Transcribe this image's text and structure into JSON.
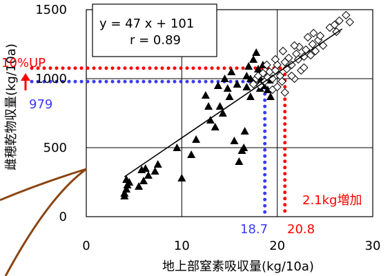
{
  "chart_data": {
    "type": "scatter",
    "xlabel": "地上部窒素吸収量(kg/10a)",
    "ylabel": "雌穂乾物収量(kg/10a)",
    "xlim": [
      0,
      30
    ],
    "ylim": [
      0,
      1500
    ],
    "x_ticks": [
      "0",
      "10",
      "20",
      "30"
    ],
    "y_ticks": [
      "0",
      "500",
      "1000",
      "1500"
    ],
    "grid": true,
    "series": [
      {
        "marker": "filled-triangle",
        "color": "#000000",
        "points": [
          [
            4.0,
            170
          ],
          [
            4.0,
            150
          ],
          [
            4.2,
            200
          ],
          [
            4.3,
            230
          ],
          [
            4.5,
            250
          ],
          [
            4.2,
            270
          ],
          [
            5.5,
            220
          ],
          [
            6.0,
            260
          ],
          [
            6.5,
            300
          ],
          [
            5.8,
            340
          ],
          [
            6.2,
            350
          ],
          [
            7.2,
            330
          ],
          [
            7.5,
            380
          ],
          [
            9.5,
            500
          ],
          [
            10.0,
            280
          ],
          [
            11.0,
            450
          ],
          [
            11.5,
            560
          ],
          [
            12.5,
            880
          ],
          [
            12.8,
            800
          ],
          [
            13.0,
            700
          ],
          [
            13.5,
            650
          ],
          [
            13.8,
            950
          ],
          [
            14.0,
            800
          ],
          [
            14.3,
            750
          ],
          [
            14.5,
            1000
          ],
          [
            14.8,
            930
          ],
          [
            15.0,
            870
          ],
          [
            15.2,
            1050
          ],
          [
            15.5,
            550
          ],
          [
            15.8,
            960
          ],
          [
            16.0,
            400
          ],
          [
            16.3,
            480
          ],
          [
            16.5,
            500
          ],
          [
            16.6,
            620
          ],
          [
            16.8,
            1020
          ],
          [
            16.8,
            940
          ],
          [
            17.0,
            1090
          ],
          [
            17.2,
            1000
          ],
          [
            17.5,
            1140
          ],
          [
            17.2,
            870
          ],
          [
            17.8,
            1190
          ],
          [
            18.0,
            1070
          ],
          [
            18.2,
            930
          ],
          [
            18.3,
            990
          ],
          [
            18.5,
            1100
          ],
          [
            18.8,
            1000
          ],
          [
            19.0,
            920
          ],
          [
            19.2,
            990
          ],
          [
            19.3,
            870
          ],
          [
            18.6,
            950
          ]
        ]
      },
      {
        "marker": "open-diamond",
        "color": "#000000",
        "points": [
          [
            17.5,
            960
          ],
          [
            17.8,
            1000
          ],
          [
            18.0,
            1020
          ],
          [
            18.2,
            950
          ],
          [
            18.5,
            1040
          ],
          [
            18.7,
            980
          ],
          [
            19.0,
            1010
          ],
          [
            19.2,
            1050
          ],
          [
            19.5,
            1000
          ],
          [
            19.8,
            1060
          ],
          [
            20.0,
            1100
          ],
          [
            20.3,
            1020
          ],
          [
            20.5,
            980
          ],
          [
            20.8,
            1120
          ],
          [
            21.0,
            1070
          ],
          [
            21.2,
            1150
          ],
          [
            21.5,
            1100
          ],
          [
            21.8,
            1000
          ],
          [
            22.0,
            1180
          ],
          [
            22.2,
            1140
          ],
          [
            22.5,
            1060
          ],
          [
            22.8,
            1160
          ],
          [
            23.0,
            1210
          ],
          [
            23.2,
            1300
          ],
          [
            23.5,
            1170
          ],
          [
            23.7,
            1250
          ],
          [
            24.0,
            1200
          ],
          [
            24.3,
            1280
          ],
          [
            24.5,
            1310
          ],
          [
            25.5,
            1370
          ],
          [
            26.0,
            1390
          ],
          [
            26.2,
            1340
          ],
          [
            26.5,
            1420
          ],
          [
            27.2,
            1460
          ],
          [
            27.6,
            1410
          ],
          [
            19.5,
            920
          ],
          [
            20.0,
            940
          ],
          [
            20.8,
            900
          ],
          [
            21.5,
            1020
          ],
          [
            22.3,
            1230
          ],
          [
            19.8,
            1140
          ],
          [
            20.6,
            1200
          ],
          [
            21.8,
            1240
          ],
          [
            22.8,
            1080
          ],
          [
            18.9,
            1100
          ],
          [
            23.8,
            1330
          ],
          [
            24.8,
            1240
          ]
        ]
      }
    ],
    "regression": {
      "slope": 47,
      "intercept": 101,
      "x_range": [
        4,
        26.8
      ],
      "equation": "y = 47 x + 101",
      "r": "r = 0.89"
    },
    "annotations": {
      "up_label": "10%UP",
      "up_color": "#ff0000",
      "red_y": 1076,
      "red_x": 20.8,
      "red_x_label": "20.8",
      "blue_y": 979,
      "blue_y_label": "979",
      "blue_x": 18.7,
      "blue_x_label": "18.7",
      "blue_color": "#3a3af0",
      "increase_label": "2.1kg増加",
      "accent_brown": "#8b4513"
    }
  }
}
